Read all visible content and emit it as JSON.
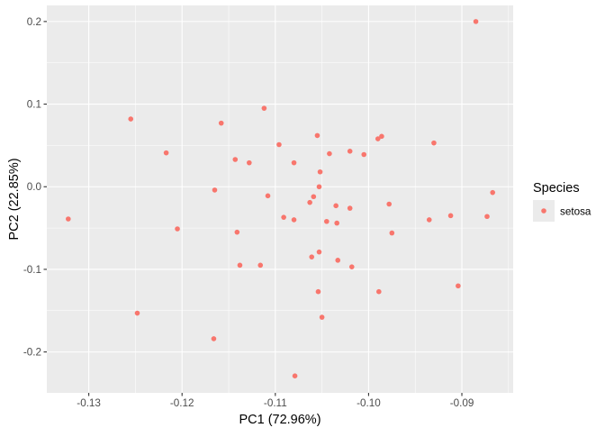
{
  "chart_data": {
    "type": "scatter",
    "title": "",
    "xlabel": "PC1 (72.96%)",
    "ylabel": "PC2 (22.85%)",
    "xlim": [
      -0.1345,
      -0.0845
    ],
    "ylim": [
      -0.2495,
      0.2195
    ],
    "x_ticks": [
      -0.13,
      -0.12,
      -0.11,
      -0.1,
      -0.09
    ],
    "x_tick_labels": [
      "-0.13",
      "-0.12",
      "-0.11",
      "-0.10",
      "-0.09"
    ],
    "y_ticks": [
      -0.2,
      -0.1,
      0.0,
      0.1,
      0.2
    ],
    "y_tick_labels": [
      "-0.2",
      "-0.1",
      "0.0",
      "0.1",
      "0.2"
    ],
    "grid": true,
    "legend": {
      "title": "Species",
      "position": "right",
      "entries": [
        "setosa"
      ]
    },
    "colors": {
      "setosa": "#F8766D",
      "panel": "#EBEBEB",
      "grid": "#FFFFFF"
    },
    "series": [
      {
        "name": "setosa",
        "x": [
          -0.0885,
          -0.1255,
          -0.1158,
          -0.1112,
          -0.1217,
          -0.1096,
          -0.1055,
          -0.0986,
          -0.099,
          -0.093,
          -0.1143,
          -0.1128,
          -0.108,
          -0.1042,
          -0.102,
          -0.1005,
          -0.1052,
          -0.1053,
          -0.1165,
          -0.1108,
          -0.1059,
          -0.1063,
          -0.102,
          -0.1035,
          -0.0978,
          -0.1322,
          -0.1091,
          -0.108,
          -0.1045,
          -0.1034,
          -0.0935,
          -0.0912,
          -0.0873,
          -0.0867,
          -0.1205,
          -0.0975,
          -0.1141,
          -0.1053,
          -0.1061,
          -0.1033,
          -0.1138,
          -0.1116,
          -0.1018,
          -0.1054,
          -0.0904,
          -0.0989,
          -0.1248,
          -0.105,
          -0.1166,
          -0.1079
        ],
        "y": [
          0.2,
          0.082,
          0.077,
          0.095,
          0.041,
          0.051,
          0.062,
          0.061,
          0.058,
          0.053,
          0.033,
          0.029,
          0.029,
          0.04,
          0.043,
          0.039,
          0.018,
          0.0,
          -0.004,
          -0.011,
          -0.012,
          -0.019,
          -0.026,
          -0.023,
          -0.021,
          -0.039,
          -0.037,
          -0.04,
          -0.042,
          -0.044,
          -0.04,
          -0.035,
          -0.036,
          -0.007,
          -0.051,
          -0.056,
          -0.055,
          -0.079,
          -0.085,
          -0.089,
          -0.095,
          -0.095,
          -0.097,
          -0.127,
          -0.12,
          -0.127,
          -0.153,
          -0.158,
          -0.184,
          -0.229
        ]
      }
    ]
  }
}
